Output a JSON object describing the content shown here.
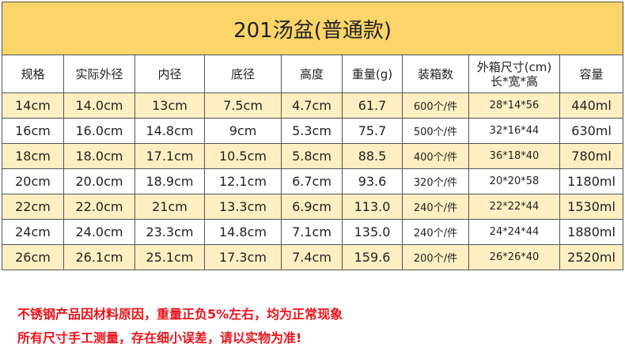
{
  "title": "201汤盆(普通款)",
  "table": {
    "header": [
      "规格",
      "实际外径",
      "内径",
      "底径",
      "高度",
      "重量(g)",
      "装箱数",
      [
        "外箱尺寸(cm)",
        "长*宽*高"
      ],
      "容量"
    ],
    "rows": [
      [
        "14cm",
        "14.0cm",
        "13cm",
        "7.5cm",
        "4.7cm",
        "61.7",
        "600个/件",
        "28*14*56",
        "440ml"
      ],
      [
        "16cm",
        "16.0cm",
        "14.8cm",
        "9cm",
        "5.3cm",
        "75.7",
        "500个/件",
        "32*16*44",
        "630ml"
      ],
      [
        "18cm",
        "18.0cm",
        "17.1cm",
        "10.5cm",
        "5.8cm",
        "88.5",
        "400个/件",
        "36*18*40",
        "780ml"
      ],
      [
        "20cm",
        "20.0cm",
        "18.9cm",
        "12.1cm",
        "6.7cm",
        "93.6",
        "320个/件",
        "20*20*58",
        "1180ml"
      ],
      [
        "22cm",
        "22.0cm",
        "21cm",
        "13.3cm",
        "6.9cm",
        "113.0",
        "240个/件",
        "22*22*44",
        "1530ml"
      ],
      [
        "24cm",
        "24.0cm",
        "23.3cm",
        "14.8cm",
        "7.1cm",
        "135.0",
        "240个/件",
        "24*24*44",
        "1880ml"
      ],
      [
        "26cm",
        "26.1cm",
        "25.1cm",
        "17.3cm",
        "7.4cm",
        "159.6",
        "200个/件",
        "26*26*40",
        "2520ml"
      ]
    ]
  },
  "notes": [
    "不锈钢产品因材料原因，重量正负5%左右，均为正常现象",
    "所有尺寸手工测量，存在细小误差，请以实物为准!"
  ]
}
